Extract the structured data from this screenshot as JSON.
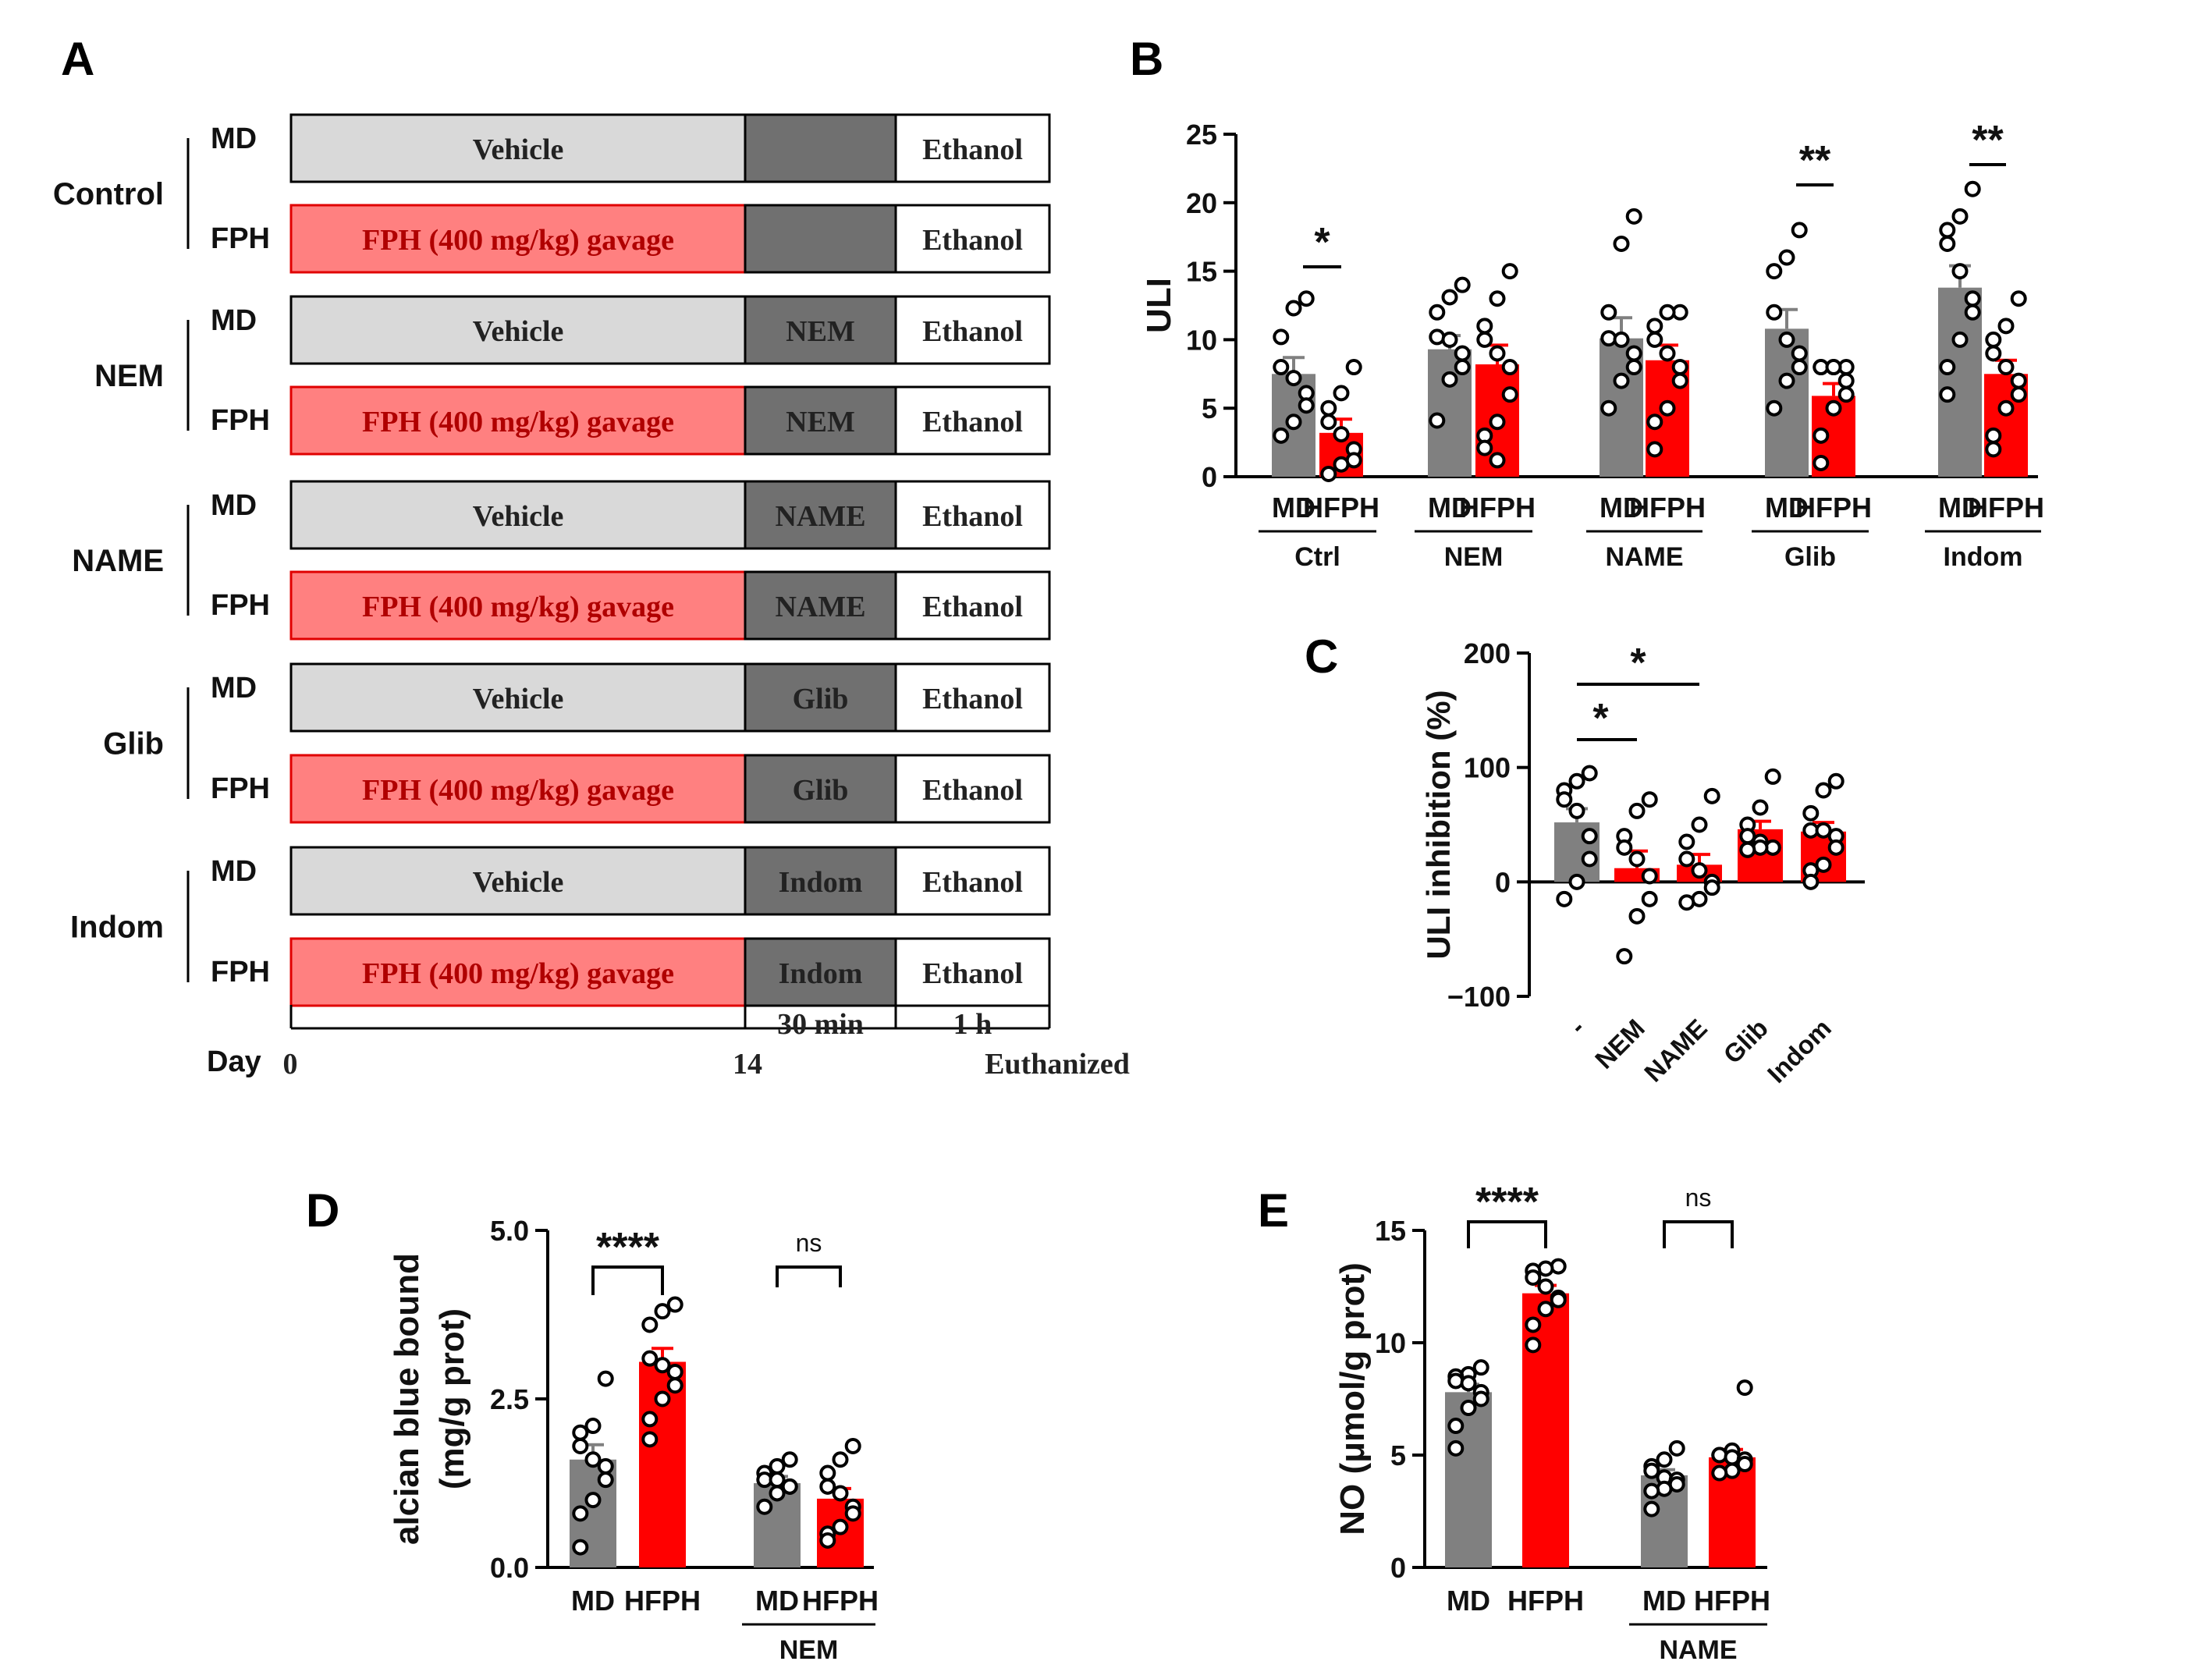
{
  "colors": {
    "md_bar": "#808080",
    "hfph_bar": "#ff0000",
    "vehicle_box": "#d9d9d9",
    "fph_box": "#ff8080",
    "fph_border": "#e00000",
    "drug_box": "#707070"
  },
  "panel_a": {
    "letter": "A",
    "groups": [
      {
        "name": "Control",
        "rows": [
          {
            "label": "MD",
            "pre": "Vehicle",
            "drug": "",
            "post": "Ethanol"
          },
          {
            "label": "FPH",
            "pre": "FPH (400 mg/kg) gavage",
            "drug": "",
            "post": "Ethanol"
          }
        ]
      },
      {
        "name": "NEM",
        "rows": [
          {
            "label": "MD",
            "pre": "Vehicle",
            "drug": "NEM",
            "post": "Ethanol"
          },
          {
            "label": "FPH",
            "pre": "FPH (400 mg/kg) gavage",
            "drug": "NEM",
            "post": "Ethanol"
          }
        ]
      },
      {
        "name": "NAME",
        "rows": [
          {
            "label": "MD",
            "pre": "Vehicle",
            "drug": "NAME",
            "post": "Ethanol"
          },
          {
            "label": "FPH",
            "pre": "FPH (400 mg/kg) gavage",
            "drug": "NAME",
            "post": "Ethanol"
          }
        ]
      },
      {
        "name": "Glib",
        "rows": [
          {
            "label": "MD",
            "pre": "Vehicle",
            "drug": "Glib",
            "post": "Ethanol"
          },
          {
            "label": "FPH",
            "pre": "FPH (400 mg/kg) gavage",
            "drug": "Glib",
            "post": "Ethanol"
          }
        ]
      },
      {
        "name": "Indom",
        "rows": [
          {
            "label": "MD",
            "pre": "Vehicle",
            "drug": "Indom",
            "post": "Ethanol"
          },
          {
            "label": "FPH",
            "pre": "FPH (400 mg/kg) gavage",
            "drug": "Indom",
            "post": "Ethanol"
          }
        ]
      }
    ],
    "timeline": {
      "day_label": "Day",
      "start": "0",
      "mid": "14",
      "end": "Euthanized",
      "interval1": "30 min",
      "interval2": "1 h"
    }
  },
  "chart_data": [
    {
      "panel": "B",
      "type": "bar",
      "title": "",
      "xlabel": "",
      "ylabel": "ULI",
      "ylim": [
        0,
        25
      ],
      "yticks": [
        0,
        5,
        10,
        15,
        20,
        25
      ],
      "bar_labels": [
        "MD",
        "HFPH",
        "MD",
        "HFPH",
        "MD",
        "HFPH",
        "MD",
        "HFPH",
        "MD",
        "HFPH"
      ],
      "group_labels": [
        "Ctrl",
        "NEM",
        "NAME",
        "Glib",
        "Indom"
      ],
      "values": [
        7.5,
        3.2,
        9.3,
        8.2,
        10.1,
        8.5,
        10.8,
        5.9,
        13.8,
        7.5
      ],
      "errors": [
        1.2,
        1.0,
        1.0,
        1.4,
        1.5,
        1.1,
        1.4,
        0.9,
        1.6,
        1.0
      ],
      "points": [
        [
          13,
          12.3,
          10.2,
          8,
          7.2,
          6.1,
          5.2,
          4,
          3
        ],
        [
          8,
          6.1,
          5,
          4,
          3.1,
          2,
          1.2,
          0.9,
          0.2
        ],
        [
          14,
          13.1,
          12,
          10.2,
          10,
          9,
          8,
          7.1,
          4.1
        ],
        [
          15,
          13,
          11,
          10,
          9,
          8,
          6,
          4,
          3,
          2.1,
          1.2
        ],
        [
          19,
          17,
          12,
          10.1,
          10,
          9,
          8,
          7,
          5
        ],
        [
          12,
          12,
          11,
          10,
          9,
          8,
          7,
          5,
          4,
          2
        ],
        [
          18,
          16,
          15,
          12,
          10,
          9,
          8,
          7,
          5
        ],
        [
          8,
          8,
          8,
          8,
          8,
          7,
          6,
          5,
          3,
          1
        ],
        [
          21,
          19,
          18,
          17,
          15,
          13,
          12,
          10,
          8,
          6
        ],
        [
          13,
          11,
          10,
          9,
          8,
          7,
          6,
          5,
          3,
          2
        ]
      ],
      "significance": [
        {
          "pair": [
            0,
            1
          ],
          "label": "*"
        },
        {
          "pair": [
            6,
            7
          ],
          "label": "**"
        },
        {
          "pair": [
            8,
            9
          ],
          "label": "**"
        }
      ]
    },
    {
      "panel": "C",
      "type": "bar",
      "title": "",
      "xlabel": "",
      "ylabel": "ULI inhibition (%)",
      "ylim": [
        -100,
        200
      ],
      "yticks": [
        -100,
        0,
        100,
        200
      ],
      "categories": [
        "-",
        "NEM",
        "NAME",
        "Glib",
        "Indom"
      ],
      "values": [
        52,
        12,
        15,
        46,
        44
      ],
      "errors": [
        12,
        15,
        9,
        7,
        8
      ],
      "points": [
        [
          95,
          88,
          80,
          72,
          62,
          40,
          20,
          0,
          -15
        ],
        [
          72,
          62,
          40,
          30,
          20,
          5,
          -15,
          -30,
          -65
        ],
        [
          75,
          50,
          35,
          20,
          10,
          0,
          -5,
          -15,
          -18
        ],
        [
          92,
          65,
          50,
          40,
          35,
          30,
          30,
          30,
          28,
          28
        ],
        [
          88,
          80,
          60,
          45,
          45,
          40,
          30,
          15,
          10,
          0
        ]
      ],
      "significance": [
        {
          "pair": [
            0,
            1
          ],
          "label": "*"
        },
        {
          "pair": [
            0,
            2
          ],
          "label": "*"
        }
      ]
    },
    {
      "panel": "D",
      "type": "bar",
      "title": "",
      "xlabel": "",
      "ylabel": [
        "alcian blue bound",
        "(mg/g prot)"
      ],
      "ylim": [
        0,
        5.0
      ],
      "yticks": [
        0.0,
        2.5,
        5.0
      ],
      "ytick_labels": [
        "0.0",
        "2.5",
        "5.0"
      ],
      "bar_labels": [
        "MD",
        "HFPH",
        "MD",
        "HFPH"
      ],
      "group_labels": [
        "",
        "NEM"
      ],
      "values": [
        1.6,
        3.05,
        1.25,
        1.02
      ],
      "errors": [
        0.22,
        0.2,
        0.1,
        0.15
      ],
      "points": [
        [
          2.8,
          2.1,
          2.0,
          1.8,
          1.6,
          1.5,
          1.3,
          1.0,
          0.8,
          0.3
        ],
        [
          3.9,
          3.8,
          3.6,
          3.1,
          3.0,
          2.9,
          2.7,
          2.5,
          2.2,
          1.9
        ],
        [
          1.6,
          1.5,
          1.4,
          1.3,
          1.3,
          1.2,
          1.2,
          1.1,
          0.9
        ],
        [
          1.8,
          1.6,
          1.4,
          1.2,
          1.1,
          0.9,
          0.8,
          0.6,
          0.5,
          0.4
        ]
      ],
      "brackets": [
        {
          "pair": [
            0,
            1
          ],
          "label": "****"
        },
        {
          "pair": [
            2,
            3
          ],
          "label": "ns"
        }
      ]
    },
    {
      "panel": "E",
      "type": "bar",
      "title": "",
      "xlabel": "",
      "ylabel": "NO (μmol/g prot)",
      "ylim": [
        0,
        15
      ],
      "yticks": [
        0,
        5,
        10,
        15
      ],
      "bar_labels": [
        "MD",
        "HFPH",
        "MD",
        "HFPH"
      ],
      "group_labels": [
        "",
        "NAME"
      ],
      "values": [
        7.8,
        12.2,
        4.1,
        4.9
      ],
      "errors": [
        0.35,
        0.35,
        0.25,
        0.35
      ],
      "points": [
        [
          8.9,
          8.6,
          8.5,
          8.3,
          8.2,
          7.8,
          7.5,
          7.1,
          6.3,
          5.3
        ],
        [
          13.4,
          13.3,
          13.2,
          12.9,
          12.5,
          12.0,
          11.9,
          11.5,
          10.8,
          9.9
        ],
        [
          5.3,
          4.8,
          4.5,
          4.3,
          4.0,
          3.9,
          3.7,
          3.5,
          3.4,
          2.6
        ],
        [
          8.0,
          5.2,
          5.0,
          5.0,
          4.9,
          4.8,
          4.6,
          4.3,
          4.2
        ]
      ],
      "brackets": [
        {
          "pair": [
            0,
            1
          ],
          "label": "****"
        },
        {
          "pair": [
            2,
            3
          ],
          "label": "ns"
        }
      ]
    }
  ]
}
